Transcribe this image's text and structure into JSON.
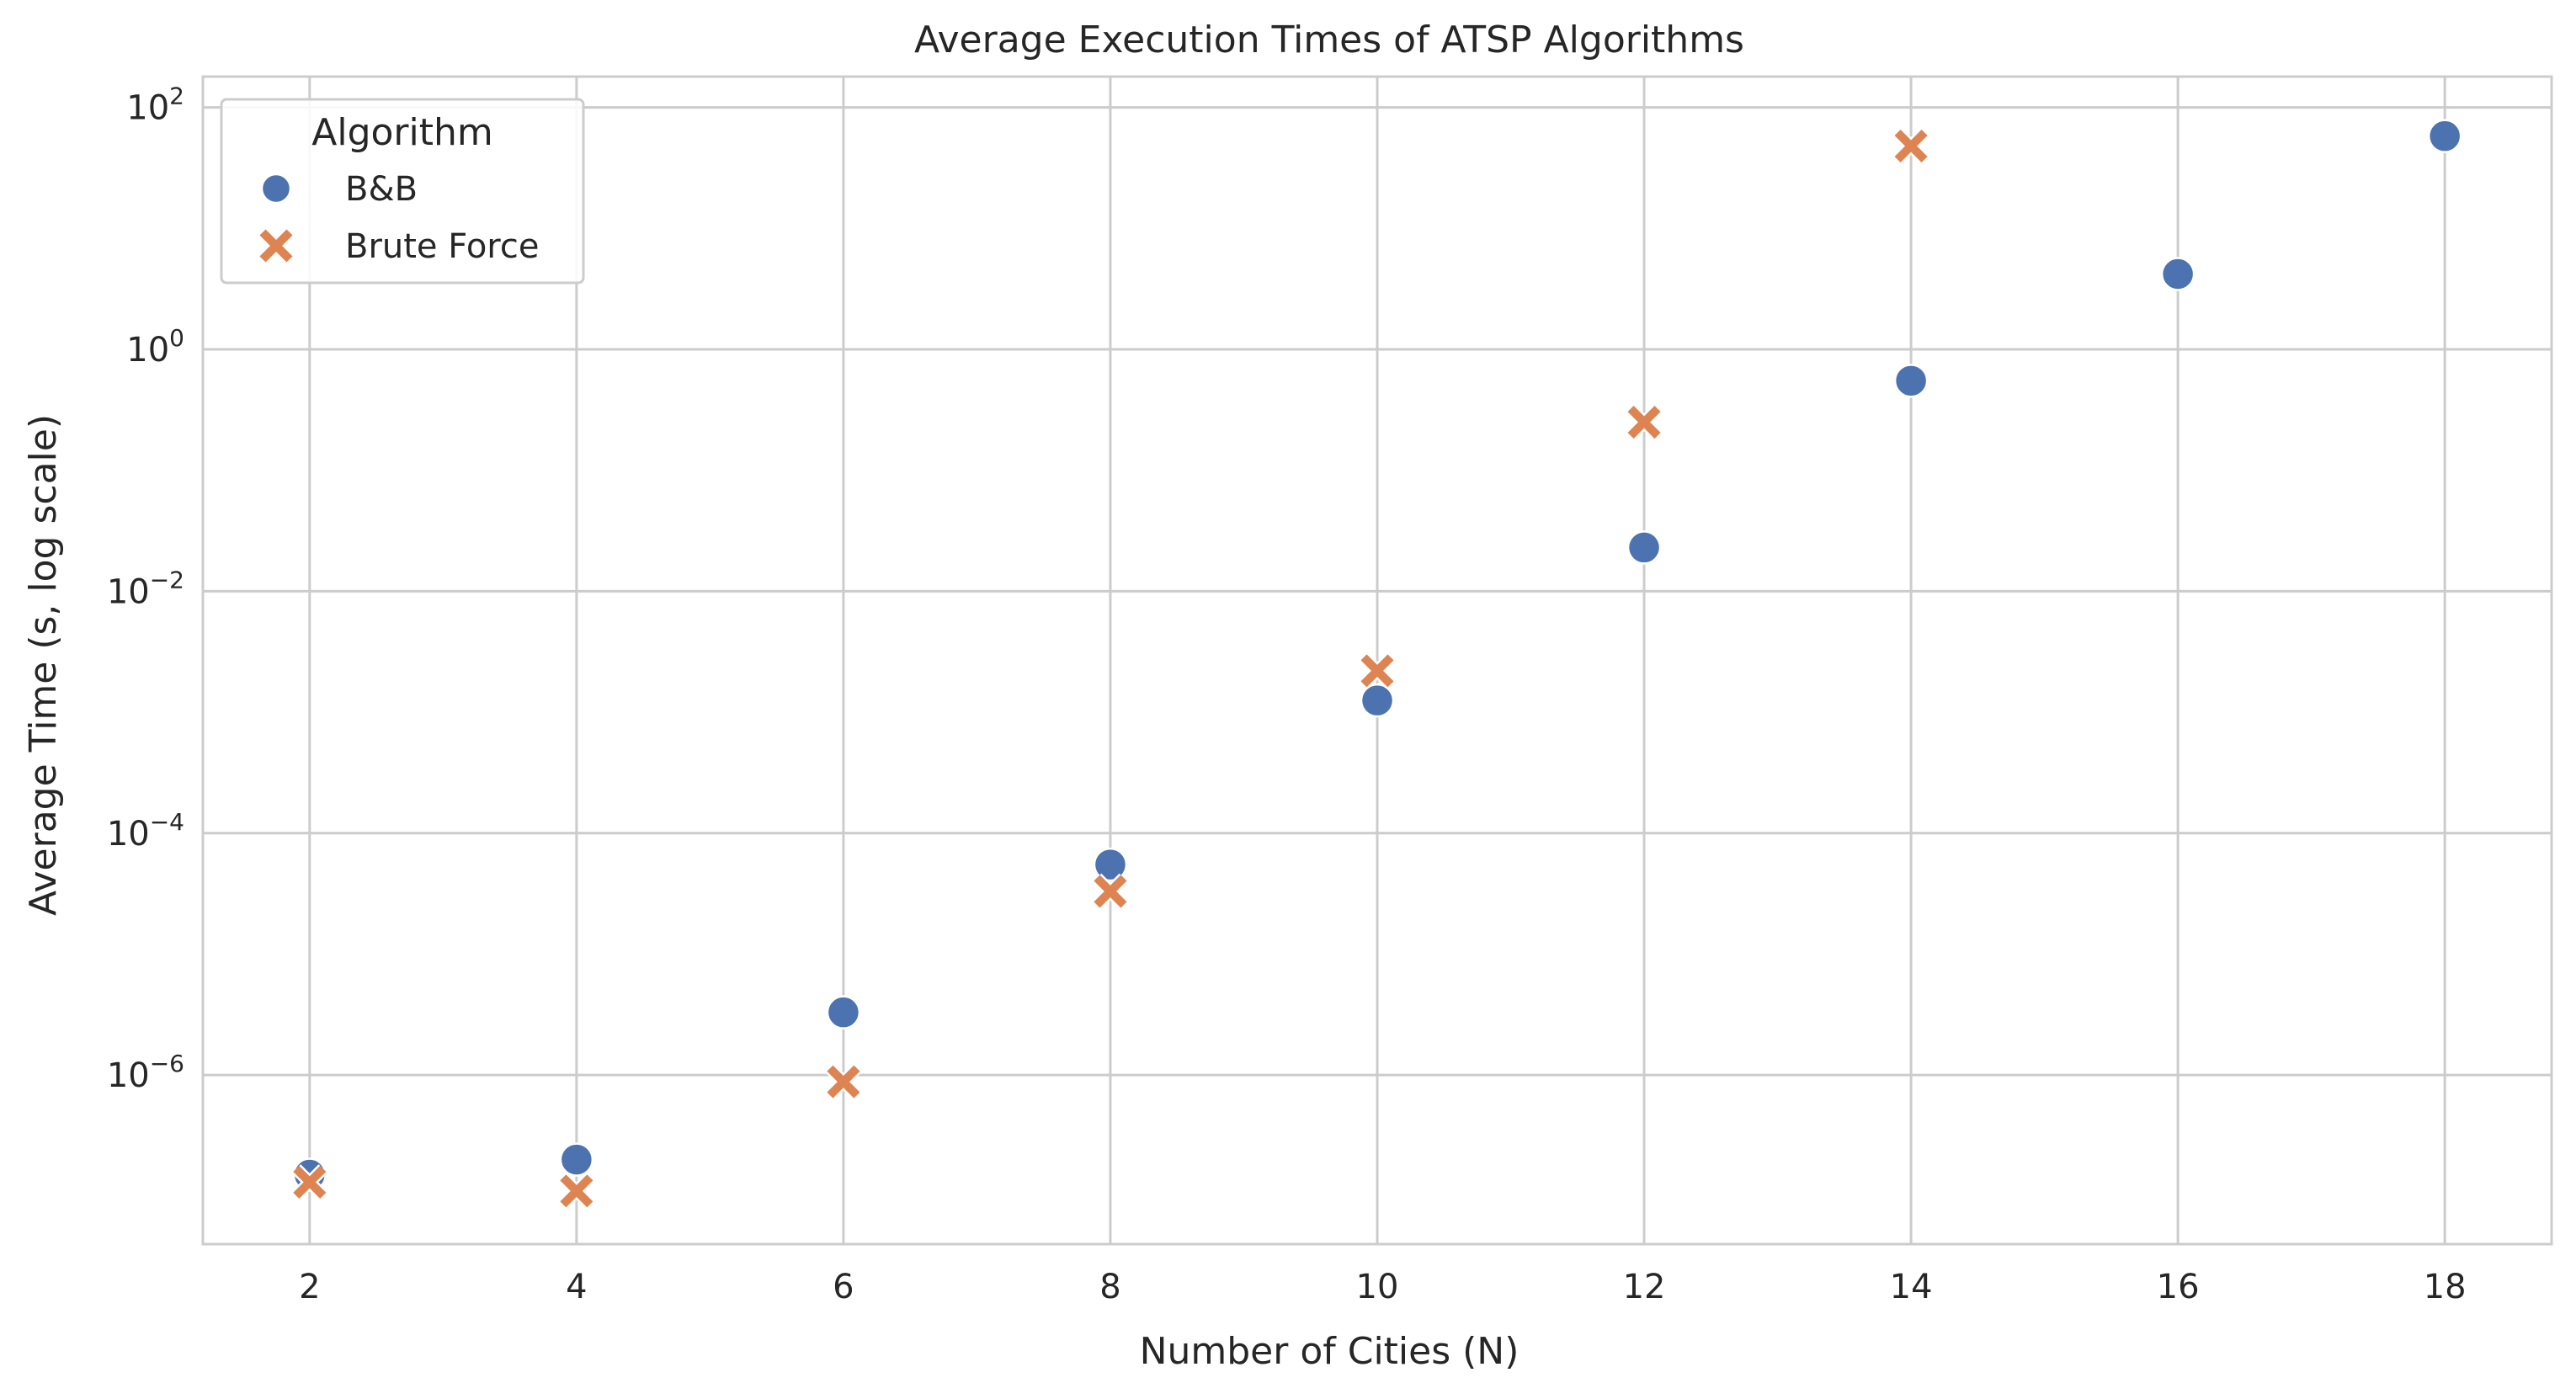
{
  "chart_data": {
    "type": "scatter",
    "title": "Average Execution Times of ATSP Algorithms",
    "xlabel": "Number of Cities (N)",
    "ylabel": "Average Time (s, log scale)",
    "xlim": [
      1.2,
      18.8
    ],
    "ylim": [
      4e-08,
      180
    ],
    "yscale": "log",
    "grid": true,
    "xticks": [
      2,
      4,
      6,
      8,
      10,
      12,
      14,
      16,
      18
    ],
    "yticks": [
      {
        "base": "10",
        "exp": "−6",
        "value": 1e-06
      },
      {
        "base": "10",
        "exp": "−4",
        "value": 0.0001
      },
      {
        "base": "10",
        "exp": "−2",
        "value": 0.01
      },
      {
        "base": "10",
        "exp": "0",
        "value": 1
      },
      {
        "base": "10",
        "exp": "2",
        "value": 100
      }
    ],
    "legend": {
      "title": "Algorithm",
      "placement": "top-left"
    },
    "series": [
      {
        "name": "B&B",
        "marker": "circle",
        "color": "#4c72b0",
        "points": [
          {
            "x": 2,
            "y": 1.5e-07
          },
          {
            "x": 4,
            "y": 2e-07
          },
          {
            "x": 6,
            "y": 3.3e-06
          },
          {
            "x": 8,
            "y": 5.5e-05
          },
          {
            "x": 10,
            "y": 0.00125
          },
          {
            "x": 12,
            "y": 0.023
          },
          {
            "x": 14,
            "y": 0.55
          },
          {
            "x": 16,
            "y": 4.2
          },
          {
            "x": 18,
            "y": 58
          }
        ]
      },
      {
        "name": "Brute Force",
        "marker": "x",
        "color": "#dd8452",
        "points": [
          {
            "x": 2,
            "y": 1.3e-07
          },
          {
            "x": 4,
            "y": 1.1e-07
          },
          {
            "x": 6,
            "y": 8.8e-07
          },
          {
            "x": 8,
            "y": 3.3e-05
          },
          {
            "x": 10,
            "y": 0.0022
          },
          {
            "x": 12,
            "y": 0.25
          },
          {
            "x": 14,
            "y": 48
          }
        ]
      }
    ]
  }
}
